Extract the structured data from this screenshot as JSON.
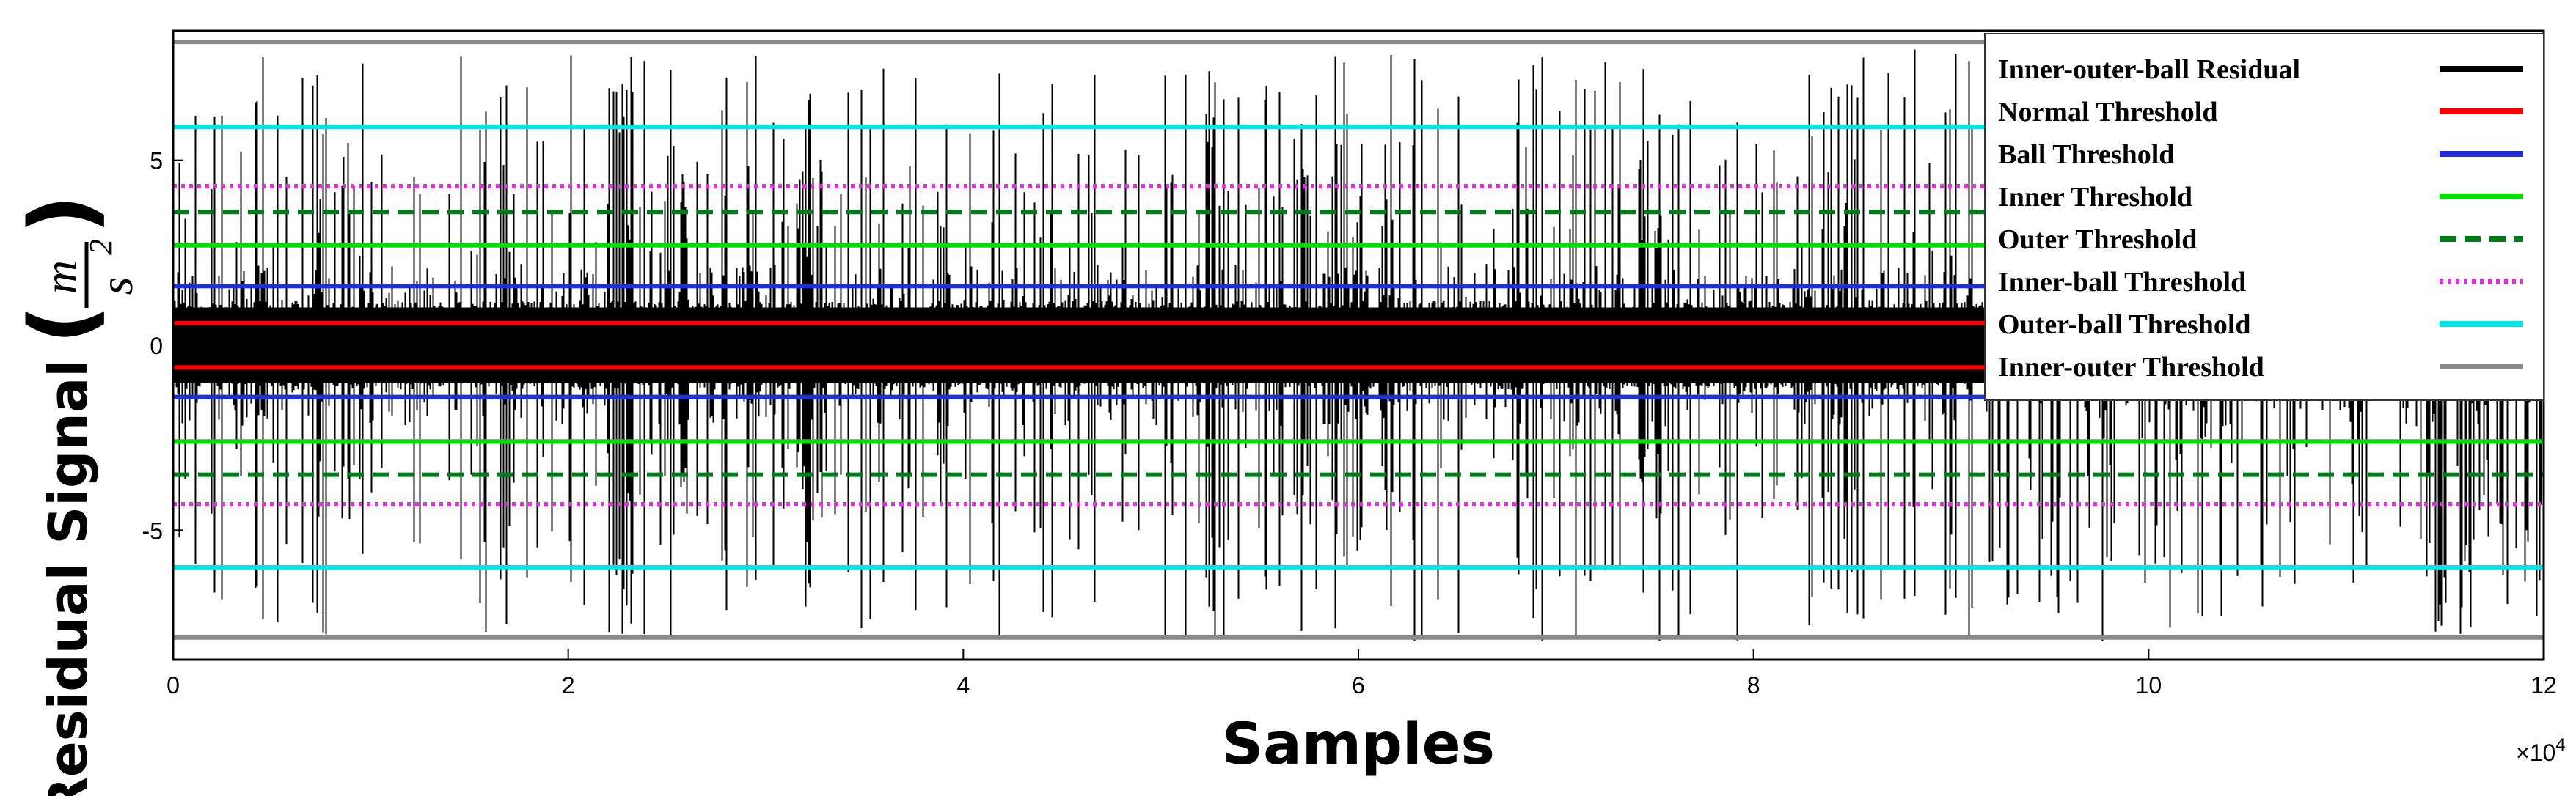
{
  "chart_data": {
    "type": "line",
    "xlabel": "Samples",
    "ylabel_prefix": "Residual Signal",
    "ylabel_unit": {
      "numerator": "m",
      "denominator": "s",
      "power": "2"
    },
    "xlim": [
      0,
      120000
    ],
    "ylim": [
      -8.5,
      8.5
    ],
    "x_multiplier": "×10",
    "x_multiplier_exp": "4",
    "xticks": [
      {
        "value": 0,
        "label": "0"
      },
      {
        "value": 20000,
        "label": "2"
      },
      {
        "value": 40000,
        "label": "4"
      },
      {
        "value": 60000,
        "label": "6"
      },
      {
        "value": 80000,
        "label": "8"
      },
      {
        "value": 100000,
        "label": "10"
      },
      {
        "value": 120000,
        "label": "12"
      }
    ],
    "yticks": [
      {
        "value": 5,
        "label": "5"
      },
      {
        "value": 0,
        "label": "0"
      },
      {
        "value": -5,
        "label": "-5"
      }
    ],
    "legend_position": "top-right",
    "residual": {
      "name": "Inner-outer-ball Residual",
      "color": "#000000",
      "dense_band": [
        -1.2,
        1.2
      ],
      "peak_range": [
        -8.0,
        8.0
      ]
    },
    "series": [
      {
        "name": "Normal Threshold",
        "color": "#ff0000",
        "style": "solid",
        "values": [
          0.6,
          -0.6
        ]
      },
      {
        "name": "Ball Threshold",
        "color": "#1f2fd6",
        "style": "solid",
        "values": [
          1.6,
          -1.4
        ]
      },
      {
        "name": "Inner Threshold",
        "color": "#00e000",
        "style": "solid",
        "values": [
          2.7,
          -2.6
        ]
      },
      {
        "name": "Outer Threshold",
        "color": "#007a1a",
        "style": "dashed",
        "values": [
          3.6,
          -3.5
        ]
      },
      {
        "name": "Inner-ball Threshold",
        "color": "#e030e0",
        "style": "dotted",
        "values": [
          4.3,
          -4.3
        ]
      },
      {
        "name": "Outer-ball Threshold",
        "color": "#00e5e5",
        "style": "solid",
        "values": [
          5.9,
          -6.0
        ]
      },
      {
        "name": "Inner-outer Threshold",
        "color": "#8a8a8a",
        "style": "solid",
        "values": [
          8.2,
          -7.9
        ]
      }
    ]
  }
}
